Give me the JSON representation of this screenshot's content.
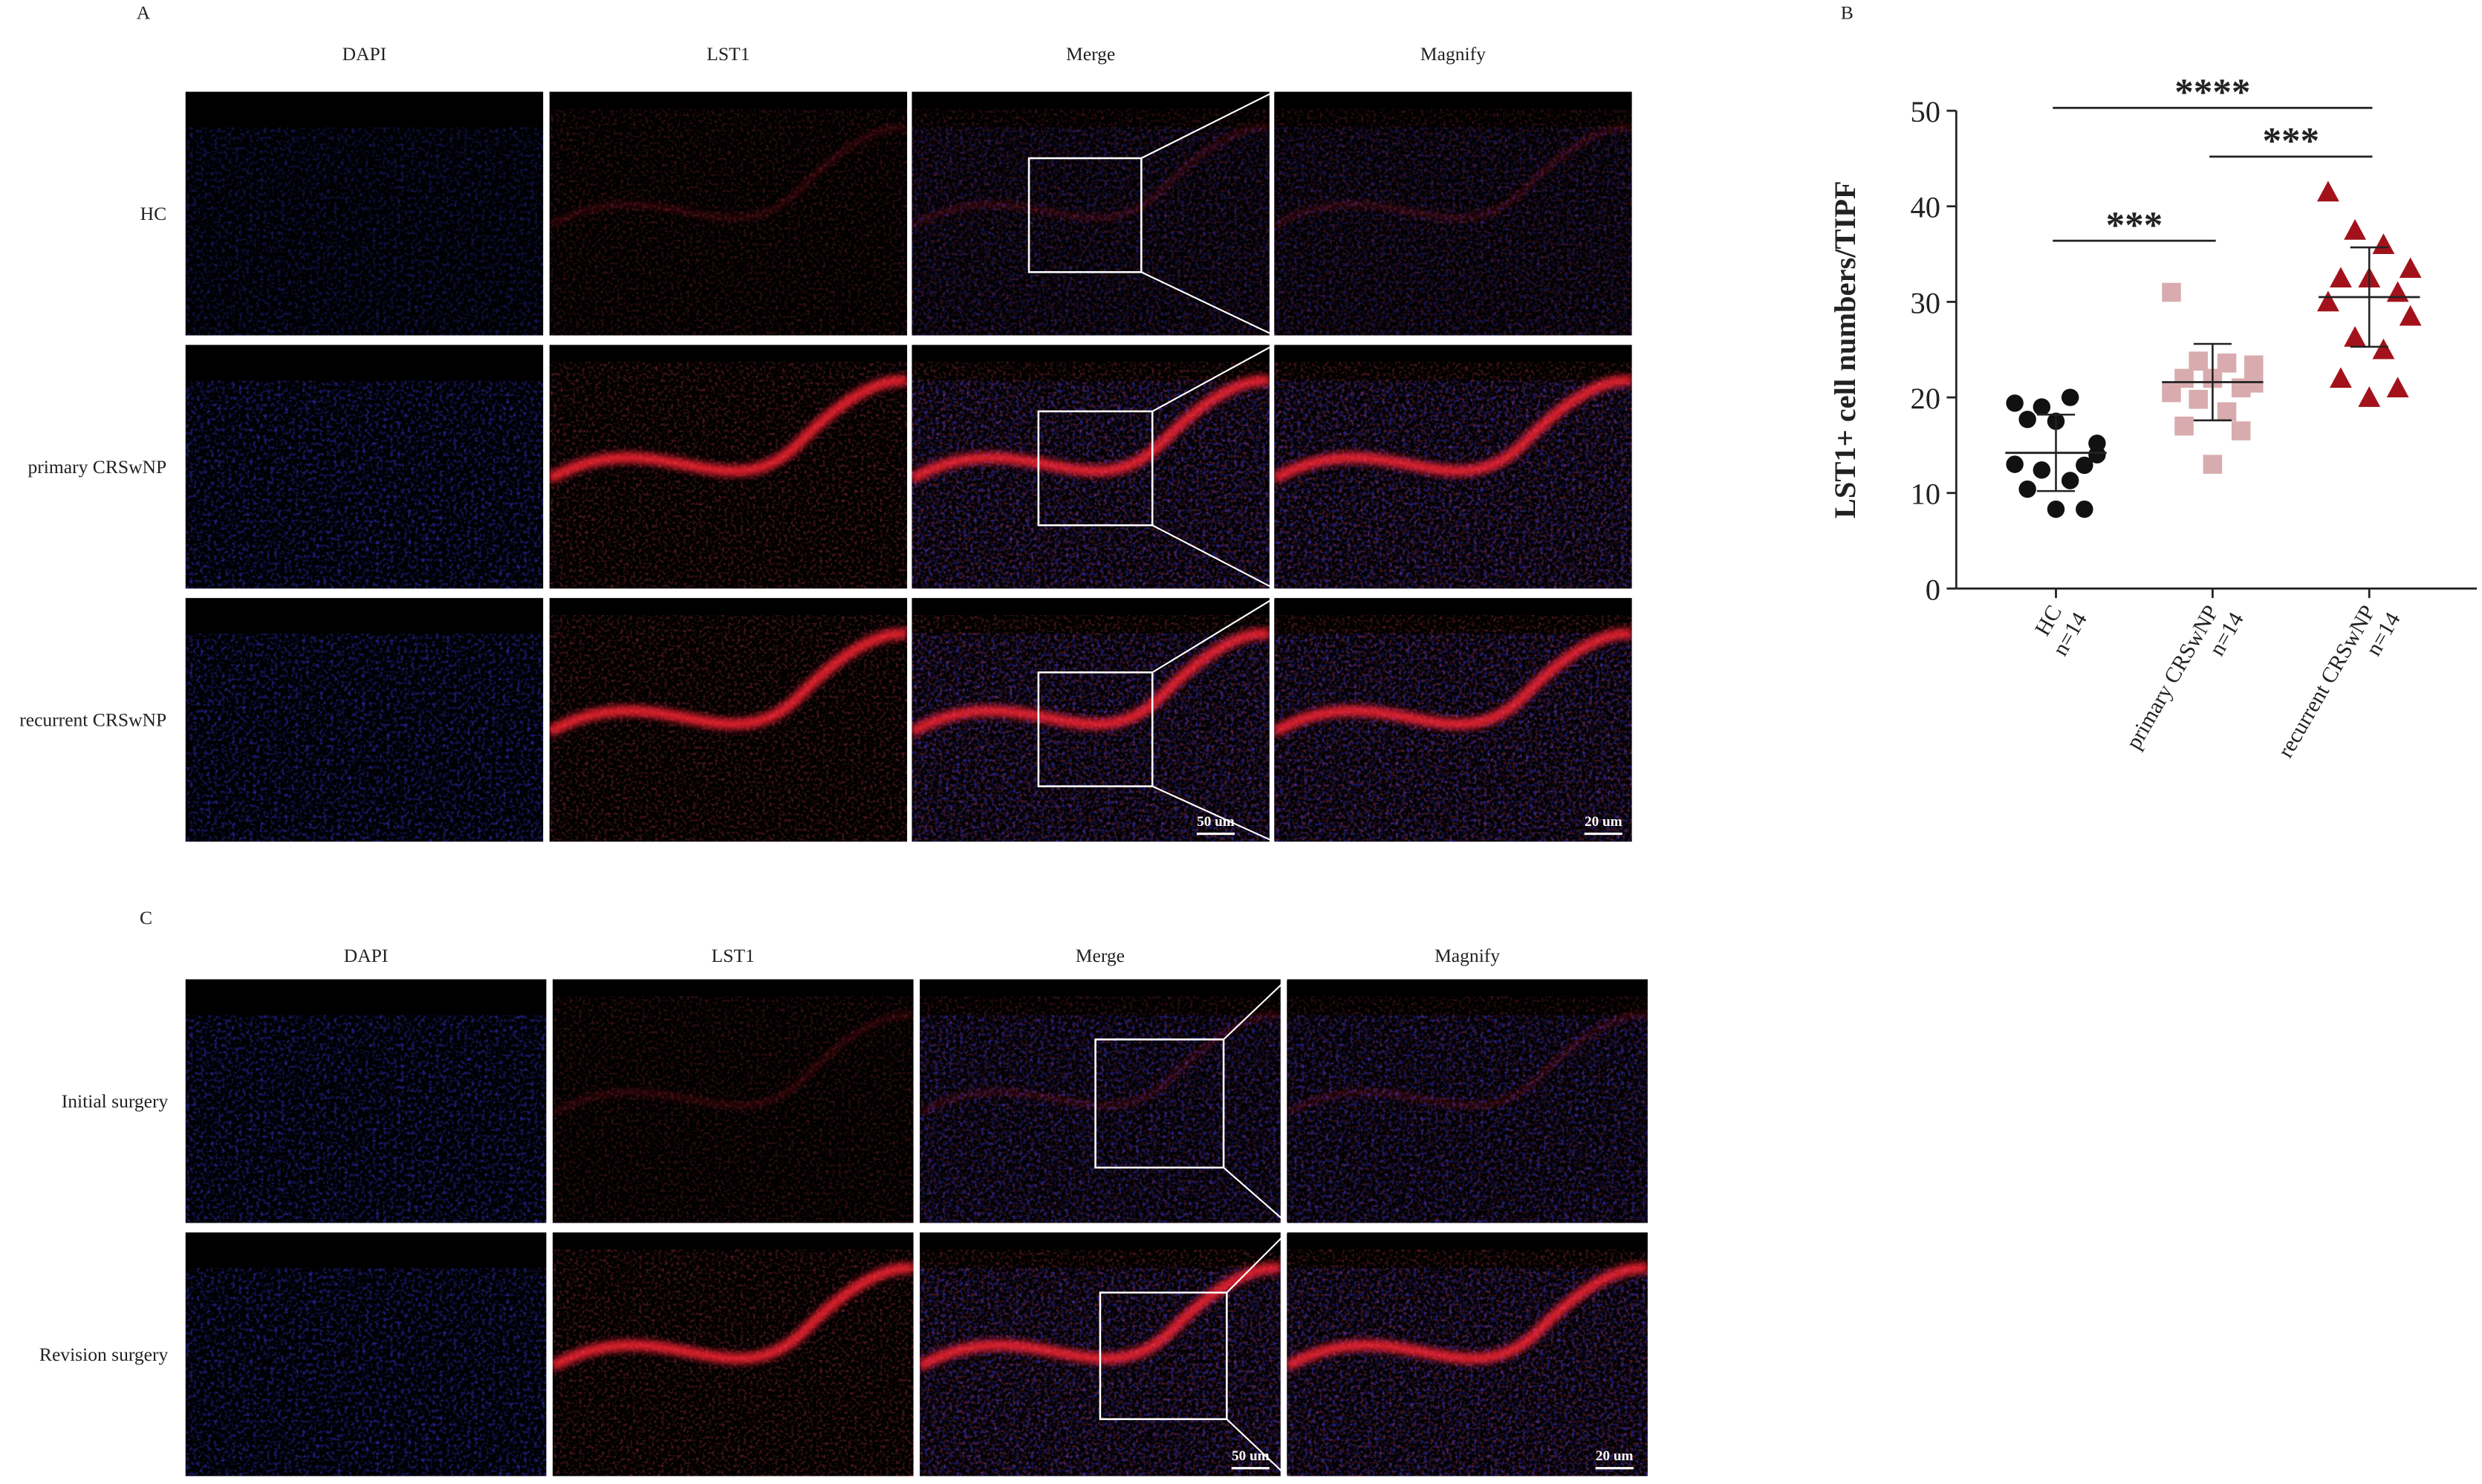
{
  "panel_a": {
    "label": "A",
    "columns": [
      "DAPI",
      "LST1",
      "Merge",
      "Magnify"
    ],
    "rows": [
      "HC",
      "primary CRSwNP",
      "recurrent CRSwNP"
    ],
    "scale_bars": [
      "50 um",
      "20 um"
    ]
  },
  "chart_data": {
    "type": "scatter",
    "panel_label": "B",
    "ylabel": "LST1+ cell numbers/TIPF",
    "categories": [
      "HC",
      "primary CRSwNP",
      "recurrent CRSwNP"
    ],
    "category_counts": [
      "n=14",
      "n=14",
      "n=14"
    ],
    "ylim": [
      0,
      50
    ],
    "yticks": [
      0,
      10,
      20,
      30,
      40,
      50
    ],
    "series": [
      {
        "name": "HC",
        "color": "#111111",
        "marker": "circle",
        "values": [
          19.4,
          19,
          20,
          15.2,
          17.7,
          17.5,
          12.9,
          13,
          14,
          12.4,
          11.3,
          10.4,
          8.3,
          8.3
        ],
        "mean": 14.2,
        "error": 4.0
      },
      {
        "name": "primary CRSwNP",
        "color": "#d8acae",
        "marker": "square",
        "values": [
          31,
          23.8,
          23.6,
          23.4,
          22,
          22,
          21,
          20.5,
          21.5,
          19.8,
          18.5,
          17,
          16.5,
          13
        ],
        "mean": 21.6,
        "error": 4.0
      },
      {
        "name": "recurrent CRSwNP",
        "color": "#a3121b",
        "marker": "triangle",
        "values": [
          41.5,
          37.5,
          36,
          33.5,
          32.5,
          32.5,
          31,
          30,
          28.5,
          26.3,
          25,
          22,
          21,
          20
        ],
        "mean": 30.5,
        "error": 5.2
      }
    ],
    "annotations": [
      {
        "text": "***",
        "from": 0,
        "to": 1,
        "y": 36.4
      },
      {
        "text": "***",
        "from": 1,
        "to": 2,
        "y": 45.2
      },
      {
        "text": "****",
        "from": 0,
        "to": 2,
        "y": 50.3
      }
    ]
  },
  "panel_c": {
    "label": "C",
    "columns": [
      "DAPI",
      "LST1",
      "Merge",
      "Magnify"
    ],
    "rows": [
      "Initial surgery",
      "Revision surgery"
    ],
    "scale_bars": [
      "50 um",
      "20 um"
    ]
  }
}
